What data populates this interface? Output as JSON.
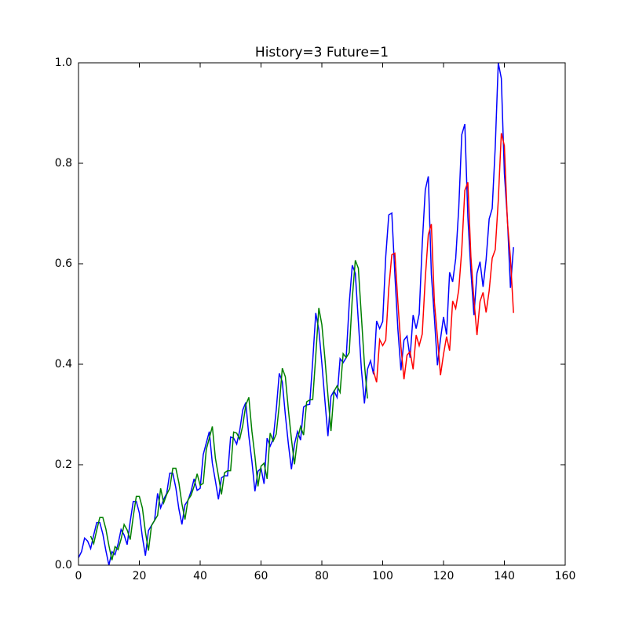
{
  "chart_data": {
    "type": "line",
    "title": "History=3 Future=1",
    "x": [
      0,
      1,
      2,
      3,
      4,
      5,
      6,
      7,
      8,
      9,
      10,
      11,
      12,
      13,
      14,
      15,
      16,
      17,
      18,
      19,
      20,
      21,
      22,
      23,
      24,
      25,
      26,
      27,
      28,
      29,
      30,
      31,
      32,
      33,
      34,
      35,
      36,
      37,
      38,
      39,
      40,
      41,
      42,
      43,
      44,
      45,
      46,
      47,
      48,
      49,
      50,
      51,
      52,
      53,
      54,
      55,
      56,
      57,
      58,
      59,
      60,
      61,
      62,
      63,
      64,
      65,
      66,
      67,
      68,
      69,
      70,
      71,
      72,
      73,
      74,
      75,
      76,
      77,
      78,
      79,
      80,
      81,
      82,
      83,
      84,
      85,
      86,
      87,
      88,
      89,
      90,
      91,
      92,
      93,
      94,
      95,
      96,
      97,
      98,
      99,
      100,
      101,
      102,
      103,
      104,
      105,
      106,
      107,
      108,
      109,
      110,
      111,
      112,
      113,
      114,
      115,
      116,
      117,
      118,
      119,
      120,
      121,
      122,
      123,
      124,
      125,
      126,
      127,
      128,
      129,
      130,
      131,
      132,
      133,
      134,
      135,
      136,
      137,
      138,
      139,
      140,
      141,
      142,
      143
    ],
    "series": [
      {
        "color": "#0000ff",
        "values": [
          0.015,
          0.027,
          0.054,
          0.048,
          0.033,
          0.06,
          0.085,
          0.085,
          0.062,
          0.029,
          0,
          0.027,
          0.021,
          0.042,
          0.071,
          0.06,
          0.041,
          0.087,
          0.127,
          0.127,
          0.104,
          0.056,
          0.019,
          0.069,
          0.079,
          0.089,
          0.143,
          0.114,
          0.131,
          0.143,
          0.183,
          0.183,
          0.154,
          0.112,
          0.081,
          0.12,
          0.129,
          0.147,
          0.172,
          0.149,
          0.153,
          0.22,
          0.243,
          0.266,
          0.203,
          0.168,
          0.131,
          0.174,
          0.178,
          0.178,
          0.255,
          0.253,
          0.241,
          0.268,
          0.309,
          0.324,
          0.257,
          0.207,
          0.147,
          0.187,
          0.193,
          0.162,
          0.253,
          0.237,
          0.251,
          0.309,
          0.382,
          0.365,
          0.299,
          0.241,
          0.191,
          0.241,
          0.266,
          0.249,
          0.315,
          0.319,
          0.32,
          0.407,
          0.502,
          0.469,
          0.402,
          0.328,
          0.257,
          0.336,
          0.347,
          0.334,
          0.411,
          0.403,
          0.413,
          0.521,
          0.597,
          0.581,
          0.485,
          0.39,
          0.322,
          0.39,
          0.407,
          0.38,
          0.486,
          0.471,
          0.485,
          0.614,
          0.697,
          0.701,
          0.579,
          0.469,
          0.388,
          0.448,
          0.456,
          0.413,
          0.498,
          0.471,
          0.5,
          0.639,
          0.747,
          0.774,
          0.579,
          0.492,
          0.398,
          0.45,
          0.494,
          0.459,
          0.583,
          0.564,
          0.61,
          0.71,
          0.857,
          0.878,
          0.693,
          0.585,
          0.498,
          0.581,
          0.604,
          0.554,
          0.608,
          0.689,
          0.71,
          0.832,
          1.0,
          0.969,
          0.78,
          0.689,
          0.552,
          0.633
        ]
      },
      {
        "color": "#008000",
        "values": [
          null,
          null,
          null,
          null,
          0.058,
          0.043,
          0.07,
          0.095,
          0.095,
          0.072,
          0.039,
          0.01,
          0.037,
          0.031,
          0.052,
          0.081,
          0.07,
          0.051,
          0.097,
          0.137,
          0.137,
          0.114,
          0.066,
          0.029,
          0.079,
          0.089,
          0.099,
          0.153,
          0.124,
          0.141,
          0.153,
          0.193,
          0.193,
          0.164,
          0.122,
          0.091,
          0.13,
          0.139,
          0.157,
          0.182,
          0.159,
          0.163,
          0.23,
          0.253,
          0.276,
          0.213,
          0.178,
          0.141,
          0.184,
          0.188,
          0.188,
          0.265,
          0.263,
          0.251,
          0.278,
          0.319,
          0.334,
          0.267,
          0.217,
          0.157,
          0.197,
          0.203,
          0.172,
          0.263,
          0.247,
          0.261,
          0.319,
          0.392,
          0.375,
          0.309,
          0.251,
          0.201,
          0.251,
          0.276,
          0.259,
          0.325,
          0.329,
          0.33,
          0.417,
          0.512,
          0.479,
          0.412,
          0.338,
          0.267,
          0.346,
          0.357,
          0.344,
          0.421,
          0.413,
          0.423,
          0.531,
          0.607,
          0.591,
          0.495,
          0.4,
          0.332,
          null,
          null,
          null,
          null,
          null,
          null,
          null,
          null,
          null,
          null,
          null,
          null,
          null,
          null,
          null,
          null,
          null,
          null,
          null,
          null,
          null,
          null,
          null,
          null,
          null,
          null,
          null,
          null,
          null,
          null,
          null,
          null,
          null,
          null,
          null,
          null,
          null,
          null,
          null,
          null,
          null,
          null,
          null,
          null,
          null,
          null,
          null,
          null
        ]
      },
      {
        "color": "#ff0000",
        "values": [
          null,
          null,
          null,
          null,
          null,
          null,
          null,
          null,
          null,
          null,
          null,
          null,
          null,
          null,
          null,
          null,
          null,
          null,
          null,
          null,
          null,
          null,
          null,
          null,
          null,
          null,
          null,
          null,
          null,
          null,
          null,
          null,
          null,
          null,
          null,
          null,
          null,
          null,
          null,
          null,
          null,
          null,
          null,
          null,
          null,
          null,
          null,
          null,
          null,
          null,
          null,
          null,
          null,
          null,
          null,
          null,
          null,
          null,
          null,
          null,
          null,
          null,
          null,
          null,
          null,
          null,
          null,
          null,
          null,
          null,
          null,
          null,
          null,
          null,
          null,
          null,
          null,
          null,
          null,
          null,
          null,
          null,
          null,
          null,
          null,
          null,
          null,
          null,
          null,
          null,
          null,
          null,
          null,
          null,
          null,
          null,
          null,
          0.386,
          0.364,
          0.449,
          0.437,
          0.448,
          0.551,
          0.618,
          0.621,
          0.523,
          0.435,
          0.37,
          0.418,
          0.425,
          0.39,
          0.458,
          0.437,
          0.46,
          0.571,
          0.658,
          0.679,
          0.523,
          0.454,
          0.378,
          0.42,
          0.455,
          0.427,
          0.526,
          0.511,
          0.548,
          0.628,
          0.746,
          0.762,
          0.614,
          0.528,
          0.458,
          0.525,
          0.543,
          0.503,
          0.546,
          0.611,
          0.628,
          0.726,
          0.86,
          0.835,
          0.684,
          0.611,
          0.502
        ]
      }
    ],
    "xlim": [
      0,
      160
    ],
    "xticks": [
      0,
      20,
      40,
      60,
      80,
      100,
      120,
      140,
      160
    ],
    "ylim": [
      0,
      1
    ],
    "yticks": [
      {
        "value": 0,
        "label": "0.0"
      },
      0.2,
      0.4,
      0.6,
      0.8,
      {
        "value": 1,
        "label": "1.0"
      }
    ]
  }
}
